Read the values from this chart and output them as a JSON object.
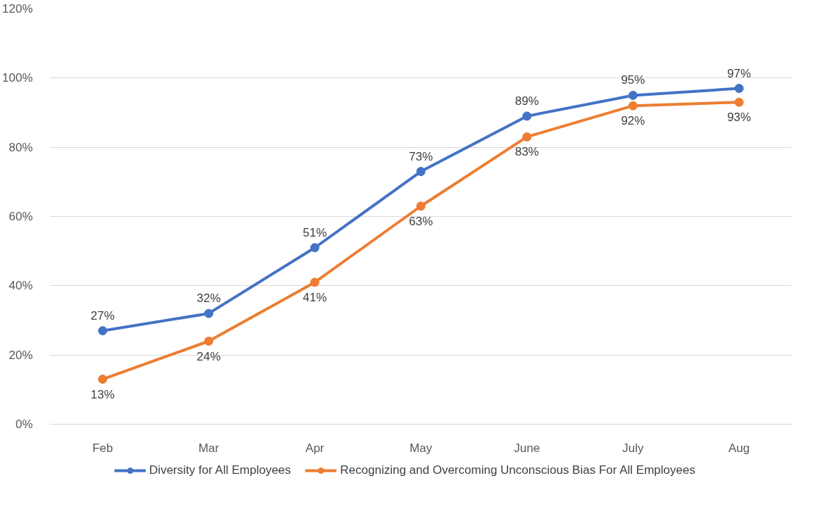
{
  "chart_data": {
    "type": "line",
    "categories": [
      "Feb",
      "Mar",
      "Apr",
      "May",
      "June",
      "July",
      "Aug"
    ],
    "series": [
      {
        "name": "Diversity for All Employees",
        "color": "#4472c4",
        "values": [
          27,
          32,
          51,
          73,
          89,
          95,
          97
        ],
        "value_labels": [
          "27%",
          "32%",
          "51%",
          "73%",
          "89%",
          "95%",
          "97%"
        ]
      },
      {
        "name": "Recognizing and Overcoming Unconscious Bias For All Employees",
        "color": "#ed7d31",
        "values": [
          13,
          24,
          41,
          63,
          83,
          92,
          93
        ],
        "value_labels": [
          "13%",
          "24%",
          "41%",
          "63%",
          "83%",
          "92%",
          "93%"
        ]
      }
    ],
    "ylim": [
      0,
      120
    ],
    "yticks": [
      {
        "value": 0,
        "label": "0%"
      },
      {
        "value": 20,
        "label": "20%"
      },
      {
        "value": 40,
        "label": "40%"
      },
      {
        "value": 60,
        "label": "60%"
      },
      {
        "value": 80,
        "label": "80%"
      },
      {
        "value": 100,
        "label": "100%"
      },
      {
        "value": 120,
        "label": "120%"
      }
    ],
    "grid": "y",
    "legend": "bottom",
    "marker": "circle",
    "line_style": "solid"
  }
}
